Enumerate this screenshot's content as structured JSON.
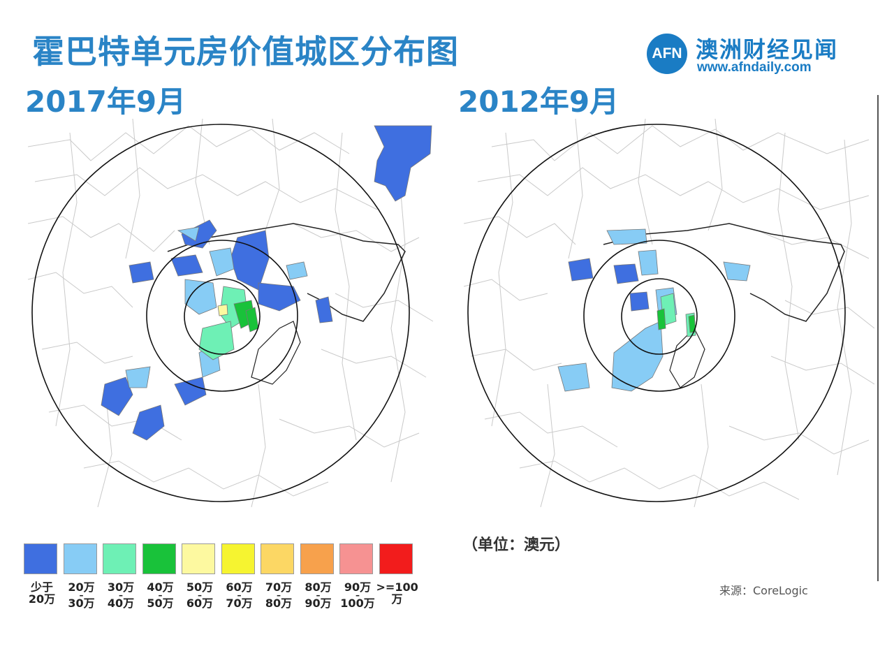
{
  "title": "霍巴特单元房价值城区分布图",
  "logo": {
    "mark": "AFN",
    "name": "澳洲财经见闻",
    "url": "www.afndaily.com"
  },
  "maps": [
    {
      "label": "2017年9月"
    },
    {
      "label": "2012年9月"
    }
  ],
  "unit": "（单位：澳元）",
  "source": "来源：CoreLogic",
  "legend": [
    {
      "color": "#3f6fe0",
      "line1": "少于",
      "line2": "20万"
    },
    {
      "color": "#87ccf5",
      "line1": "20万",
      "dash": "–",
      "line2": "30万"
    },
    {
      "color": "#6ef0b5",
      "line1": "30万",
      "dash": "–",
      "line2": "40万"
    },
    {
      "color": "#19c23a",
      "line1": "40万",
      "dash": "–",
      "line2": "50万"
    },
    {
      "color": "#fdf9a0",
      "line1": "50万",
      "dash": "–",
      "line2": "60万"
    },
    {
      "color": "#f6f430",
      "line1": "60万",
      "dash": "–",
      "line2": "70万"
    },
    {
      "color": "#fcd764",
      "line1": "70万",
      "dash": "–",
      "line2": "80万"
    },
    {
      "color": "#f7a14c",
      "line1": "80万",
      "dash": "–",
      "line2": "90万"
    },
    {
      "color": "#f69292",
      "line1": "90万",
      "dash": "–",
      "line2": "100万"
    },
    {
      "color": "#f21c1c",
      "line1": ">=100万"
    }
  ]
}
